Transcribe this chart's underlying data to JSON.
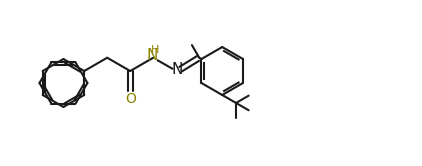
{
  "bg_color": "#ffffff",
  "line_color": "#1a1a1a",
  "N_color": "#1a1a1a",
  "NH_color": "#8B8000",
  "O_color": "#8B8000",
  "figsize": [
    4.22,
    1.66
  ],
  "dpi": 100,
  "xlim": [
    0,
    11
  ],
  "ylim": [
    0.5,
    5.0
  ]
}
